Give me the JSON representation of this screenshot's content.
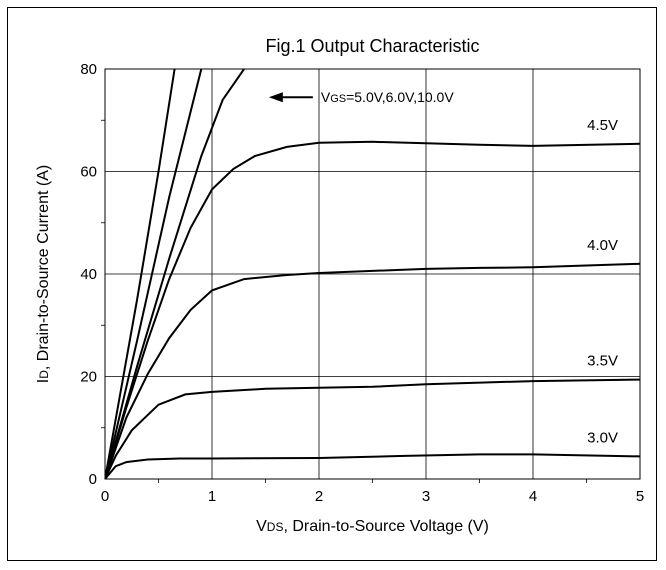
{
  "chart_data": {
    "type": "line",
    "title": "Fig.1 Output Characteristic",
    "xlabel": {
      "sym": "V",
      "sub": "DS",
      "rest": ", Drain-to-Source Voltage (V)"
    },
    "ylabel": {
      "sym": "I",
      "sub": "D",
      "rest": ", Drain-to-Source Current (A)"
    },
    "xlim": [
      0,
      5
    ],
    "ylim": [
      0,
      80
    ],
    "xticks": [
      0,
      1,
      2,
      3,
      4,
      5
    ],
    "yticks": [
      0,
      20,
      40,
      60,
      80
    ],
    "grid": true,
    "annotation": {
      "sym": "V",
      "sub": "GS",
      "rest": "=5.0V,6.0V,10.0V"
    },
    "series": [
      {
        "name": "3.0V",
        "x": [
          0,
          0.1,
          0.2,
          0.4,
          0.7,
          1.0,
          2.0,
          2.8,
          3.5,
          4.0,
          5.0
        ],
        "y": [
          0,
          2.5,
          3.3,
          3.8,
          4.0,
          4.0,
          4.1,
          4.5,
          4.8,
          4.8,
          4.4
        ]
      },
      {
        "name": "3.5V",
        "x": [
          0,
          0.1,
          0.25,
          0.5,
          0.75,
          1.0,
          1.5,
          2.0,
          2.5,
          3.0,
          4.0,
          5.0
        ],
        "y": [
          0,
          4.5,
          9.5,
          14.5,
          16.5,
          17.0,
          17.6,
          17.8,
          18.0,
          18.5,
          19.1,
          19.4
        ]
      },
      {
        "name": "4.0V",
        "x": [
          0,
          0.2,
          0.4,
          0.6,
          0.8,
          1.0,
          1.3,
          1.7,
          2.0,
          2.5,
          3.0,
          3.5,
          4.0,
          5.0
        ],
        "y": [
          0,
          12,
          20.5,
          27.5,
          33.0,
          36.8,
          39.0,
          39.8,
          40.2,
          40.6,
          41.0,
          41.2,
          41.3,
          42.0
        ]
      },
      {
        "name": "4.5V",
        "x": [
          0,
          0.2,
          0.4,
          0.6,
          0.8,
          1.0,
          1.2,
          1.4,
          1.7,
          2.0,
          2.5,
          3.0,
          3.5,
          4.0,
          5.0
        ],
        "y": [
          0,
          14,
          27,
          39,
          49,
          56.5,
          60.5,
          63.0,
          64.8,
          65.6,
          65.8,
          65.5,
          65.2,
          65.0,
          65.4
        ]
      },
      {
        "x": [
          0,
          0.3,
          0.6,
          0.9,
          1.1,
          1.3
        ],
        "y": [
          0,
          22,
          43,
          63,
          74,
          80
        ]
      },
      {
        "x": [
          0,
          0.3,
          0.6,
          0.9
        ],
        "y": [
          0,
          27,
          55,
          80
        ]
      },
      {
        "x": [
          0,
          0.3,
          0.5,
          0.65
        ],
        "y": [
          0,
          35,
          60,
          80
        ]
      }
    ],
    "series_labels": [
      "3.0V",
      "3.5V",
      "4.0V",
      "4.5V"
    ]
  }
}
